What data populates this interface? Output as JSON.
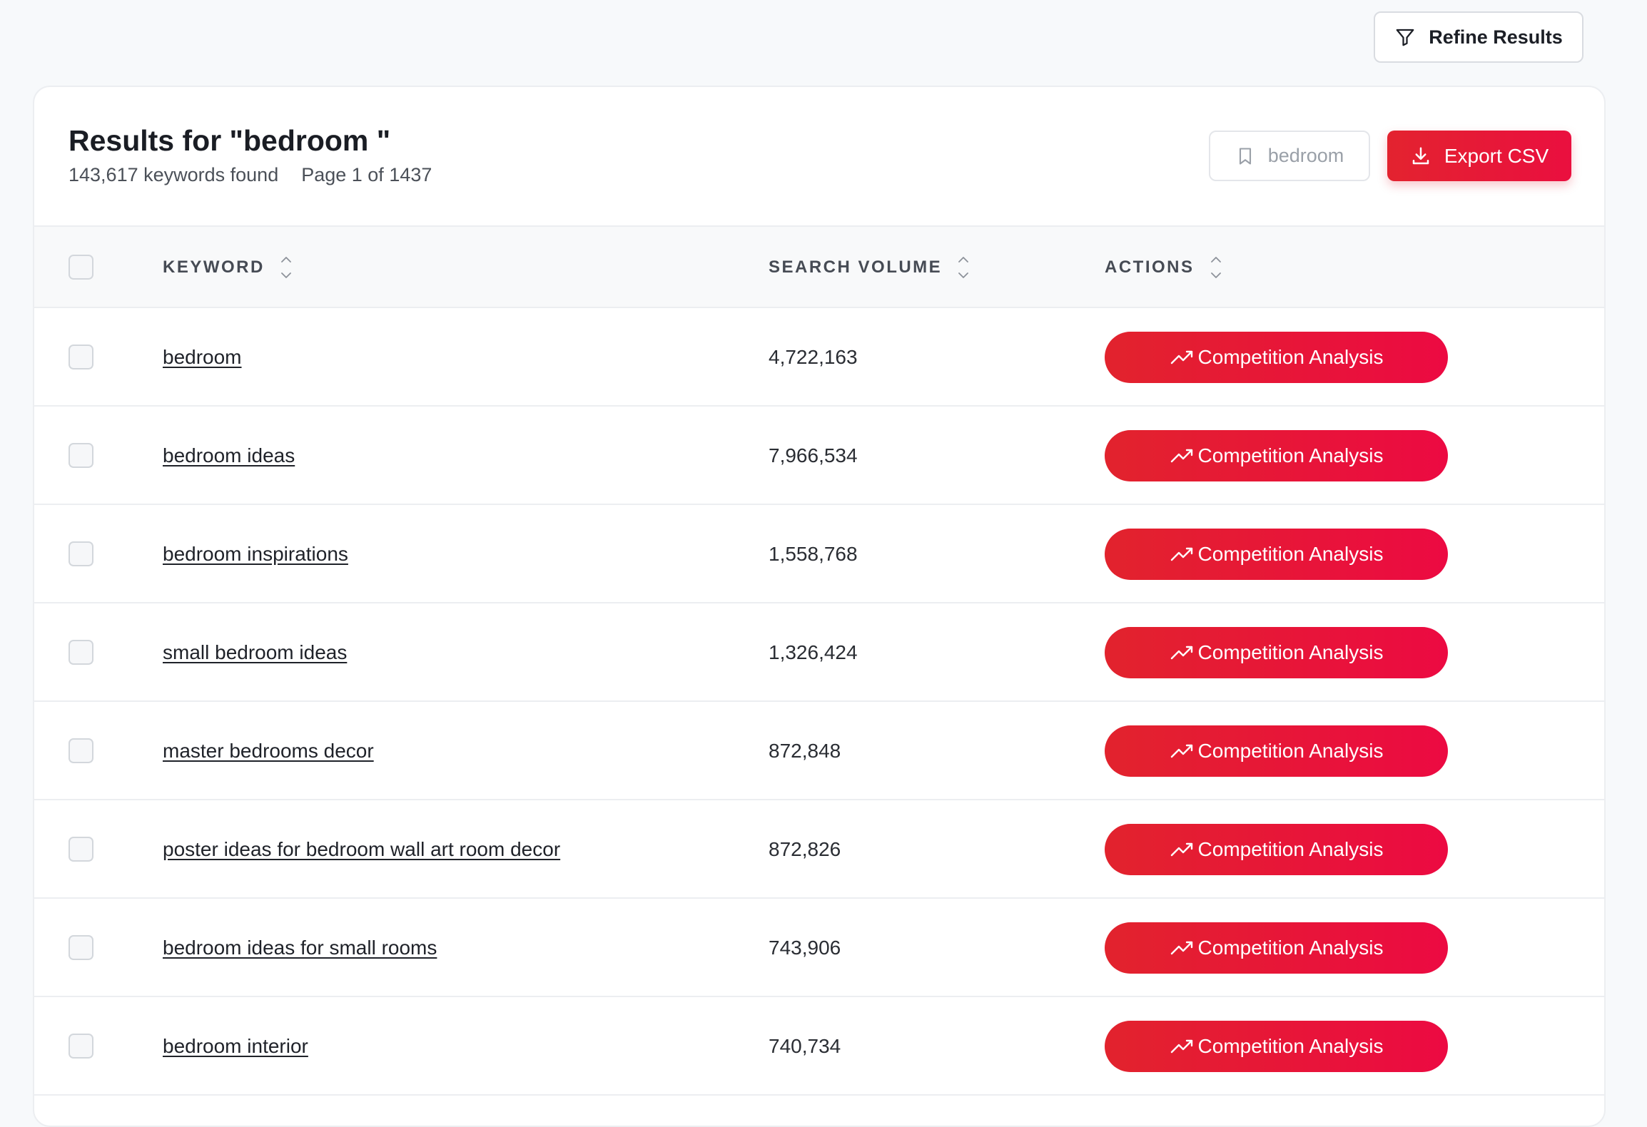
{
  "header": {
    "refine_label": "Refine Results"
  },
  "results": {
    "title": "Results for \"bedroom \"",
    "count_text": "143,617 keywords found",
    "page_text": "Page 1 of 1437",
    "saved_search_label": "bedroom",
    "export_label": "Export CSV"
  },
  "table": {
    "columns": [
      "KEYWORD",
      "SEARCH VOLUME",
      "ACTIONS"
    ],
    "action_label": "Competition Analysis",
    "rows": [
      {
        "keyword": "bedroom",
        "volume": "4,722,163"
      },
      {
        "keyword": "bedroom ideas",
        "volume": "7,966,534"
      },
      {
        "keyword": "bedroom inspirations",
        "volume": "1,558,768"
      },
      {
        "keyword": "small bedroom ideas",
        "volume": "1,326,424"
      },
      {
        "keyword": "master bedrooms decor",
        "volume": "872,848"
      },
      {
        "keyword": "poster ideas for bedroom wall art room decor",
        "volume": "872,826"
      },
      {
        "keyword": "bedroom ideas for small rooms",
        "volume": "743,906"
      },
      {
        "keyword": "bedroom interior",
        "volume": "740,734"
      }
    ]
  },
  "icons": {
    "refine": "filter-icon",
    "saved": "bookmark-icon",
    "export": "download-icon",
    "sort": "sort-icon",
    "action": "trending-up-icon"
  },
  "colors": {
    "accent": "#e8173a",
    "border": "#eceef1",
    "header_bg": "#f8f9fa"
  }
}
